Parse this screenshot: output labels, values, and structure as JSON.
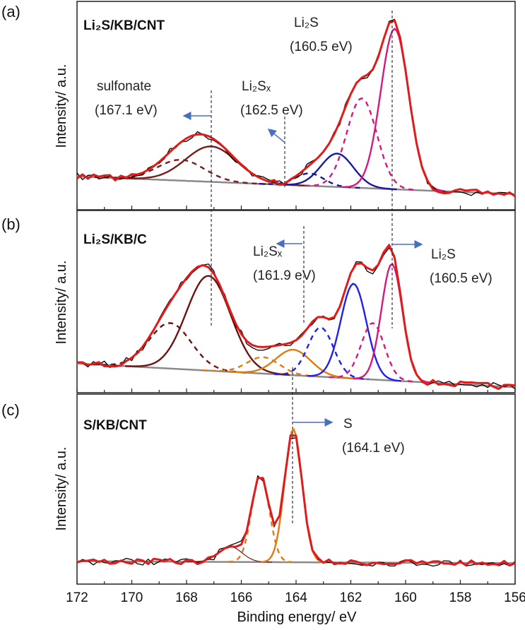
{
  "chart_data": [
    {
      "type": "line",
      "panel_label": "(a)",
      "sample": "Li₂S/KB/CNT",
      "ylabel": "Intensity/ a.u.",
      "xlim": [
        172,
        156
      ],
      "x_reversed": true,
      "baseline": [
        0.16,
        0.075
      ],
      "components": [
        {
          "center": 168.2,
          "height": 0.1,
          "fwhm": 2.0,
          "color": "#7a1b1b",
          "style": "dashed"
        },
        {
          "center": 167.1,
          "height": 0.17,
          "fwhm": 2.2,
          "color": "#7a1b1b",
          "style": "solid"
        },
        {
          "center": 163.5,
          "height": 0.06,
          "fwhm": 1.2,
          "color": "#1a1a9a",
          "style": "dashed"
        },
        {
          "center": 162.5,
          "height": 0.16,
          "fwhm": 1.4,
          "color": "#1a1a9a",
          "style": "solid"
        },
        {
          "center": 161.6,
          "height": 0.43,
          "fwhm": 1.3,
          "color": "#d6187f",
          "style": "dashed"
        },
        {
          "center": 160.4,
          "height": 0.77,
          "fwhm": 1.2,
          "color": "#d6187f",
          "style": "solid"
        }
      ],
      "annotations": [
        {
          "line1": "Li₂S",
          "line2": "(160.5 eV)",
          "energy": 160.5
        },
        {
          "line1": "sulfonate",
          "line2": "(167.1 eV)",
          "energy": 167.1
        },
        {
          "line1": "Li₂Sₓ",
          "line2": "(162.5 eV)",
          "energy": 162.5
        }
      ]
    },
    {
      "type": "line",
      "panel_label": "(b)",
      "sample": "Li₂S/KB/C",
      "ylabel": "Intensity/ a.u.",
      "xlim": [
        172,
        156
      ],
      "x_reversed": true,
      "baseline": [
        0.16,
        0.03
      ],
      "components": [
        {
          "center": 168.6,
          "height": 0.25,
          "fwhm": 1.8,
          "color": "#6b1414",
          "style": "dashed"
        },
        {
          "center": 167.2,
          "height": 0.52,
          "fwhm": 1.9,
          "color": "#6b1414",
          "style": "solid"
        },
        {
          "center": 165.2,
          "height": 0.09,
          "fwhm": 1.4,
          "color": "#e07b10",
          "style": "dashed"
        },
        {
          "center": 164.1,
          "height": 0.14,
          "fwhm": 1.5,
          "color": "#e07b10",
          "style": "solid"
        },
        {
          "center": 163.1,
          "height": 0.27,
          "fwhm": 1.1,
          "color": "#2020f0",
          "style": "dashed"
        },
        {
          "center": 161.9,
          "height": 0.52,
          "fwhm": 1.1,
          "color": "#2020f0",
          "style": "solid"
        },
        {
          "center": 161.2,
          "height": 0.31,
          "fwhm": 1.0,
          "color": "#d6187f",
          "style": "dashed"
        },
        {
          "center": 160.5,
          "height": 0.64,
          "fwhm": 0.9,
          "color": "#d6187f",
          "style": "solid"
        }
      ],
      "annotations": [
        {
          "line1": "Li₂Sₓ",
          "line2": "(161.9 eV)",
          "energy": 161.9
        },
        {
          "line1": "Li₂S",
          "line2": "(160.5 eV)",
          "energy": 160.5
        }
      ]
    },
    {
      "type": "line",
      "panel_label": "(c)",
      "sample": "S/KB/CNT",
      "ylabel": "Intensity/ a.u.",
      "xlabel": "Binding energy/ eV",
      "xlim": [
        172,
        156
      ],
      "x_reversed": true,
      "xticks": [
        "172",
        "170",
        "168",
        "166",
        "164",
        "162",
        "160",
        "158",
        "156"
      ],
      "baseline": [
        0.12,
        0.11
      ],
      "components": [
        {
          "center": 166.4,
          "height": 0.08,
          "fwhm": 1.0,
          "color": "#7a1b1b",
          "style": "thin"
        },
        {
          "center": 165.3,
          "height": 0.46,
          "fwhm": 0.75,
          "color": "#e07b10",
          "style": "dashed"
        },
        {
          "center": 164.1,
          "height": 0.7,
          "fwhm": 0.75,
          "color": "#e07b10",
          "style": "solid"
        }
      ],
      "annotations": [
        {
          "line1": "S",
          "line2": "(164.1 eV)",
          "energy": 164.1
        }
      ]
    }
  ],
  "colors": {
    "fit": "#e01b1b",
    "experimental": "#000000",
    "background": "#8a8a8a",
    "arrow": "#4a6fc0"
  }
}
